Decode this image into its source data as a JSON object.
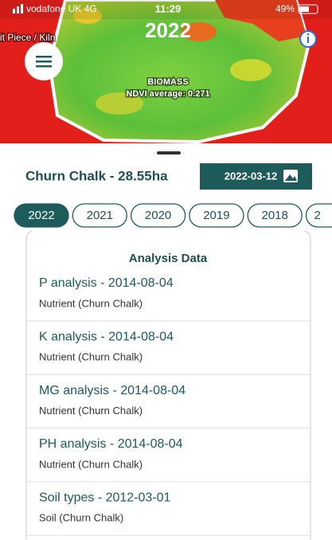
{
  "status_bar": {
    "carrier": "vodafone UK 4G",
    "time": "11:29",
    "battery": "49%"
  },
  "map": {
    "year": "2022",
    "field_label": "it Piece / Kiln",
    "layer": "BIOMASS",
    "ndvi": "NDVI average: 0.271"
  },
  "field": {
    "name": "Churn Chalk - 28.55ha",
    "date": "2022-03-12"
  },
  "years": [
    "2022",
    "2021",
    "2020",
    "2019",
    "2018",
    "2"
  ],
  "analysis": {
    "title": "Analysis Data",
    "items": [
      {
        "title": "P analysis - 2014-08-04",
        "subtitle": "Nutrient (Churn Chalk)"
      },
      {
        "title": "K analysis - 2014-08-04",
        "subtitle": "Nutrient (Churn Chalk)"
      },
      {
        "title": "MG analysis - 2014-08-04",
        "subtitle": "Nutrient (Churn Chalk)"
      },
      {
        "title": "PH analysis - 2014-08-04",
        "subtitle": "Nutrient (Churn Chalk)"
      },
      {
        "title": "Soil types - 2012-03-01",
        "subtitle": "Soil (Churn Chalk)"
      }
    ]
  }
}
